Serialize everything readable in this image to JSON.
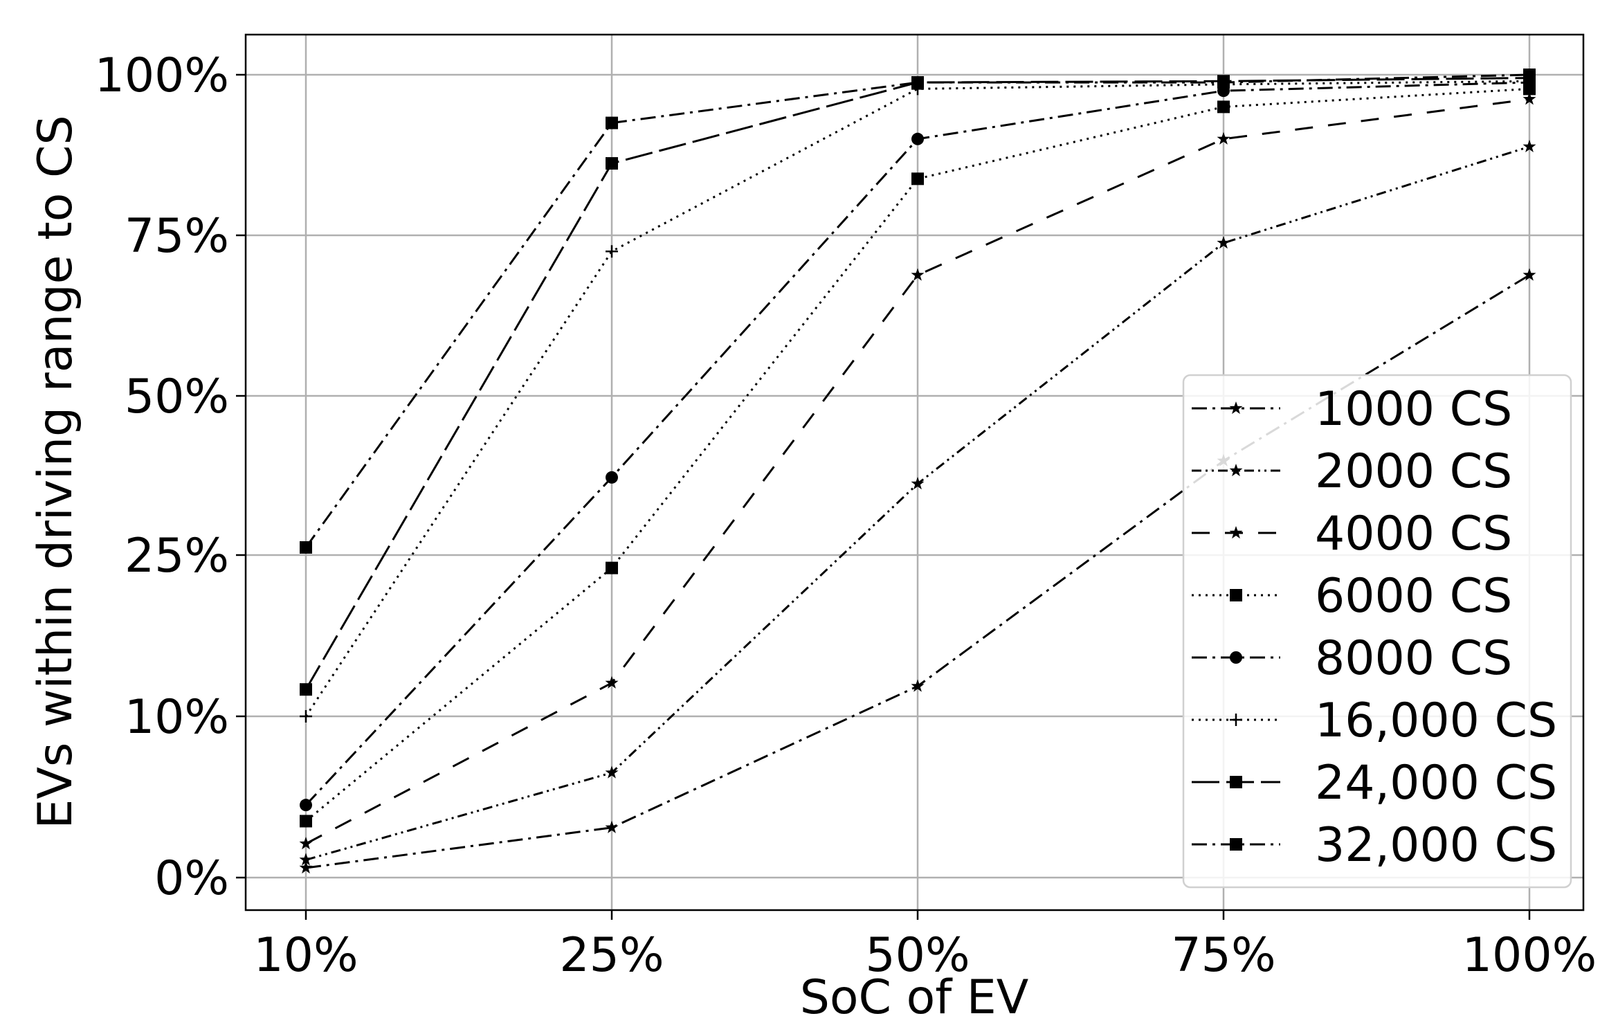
{
  "chart_data": {
    "type": "line",
    "title": "",
    "xlabel": "SoC of EV",
    "ylabel": "EVs within driving range to CS",
    "categories": [
      "10%",
      "25%",
      "50%",
      "75%",
      "100%"
    ],
    "y_ticks": [
      "0%",
      "10%",
      "25%",
      "50%",
      "75%",
      "100%"
    ],
    "grid": true,
    "legend_position": "lower-right",
    "color": "#000000",
    "series": [
      {
        "name": "1000 CS",
        "marker": "star",
        "dash": "dashdot",
        "values": [
          0.6,
          3.1,
          12.8,
          39.8,
          68.8
        ]
      },
      {
        "name": "2000 CS",
        "marker": "star",
        "dash": "dashdot2",
        "values": [
          1.1,
          6.5,
          36.2,
          73.8,
          88.8
        ]
      },
      {
        "name": "4000 CS",
        "marker": "star",
        "dash": "dashed",
        "values": [
          2.1,
          13.1,
          68.8,
          90.0,
          96.2
        ]
      },
      {
        "name": "6000 CS",
        "marker": "square",
        "dash": "dotted",
        "values": [
          3.5,
          23.8,
          83.8,
          95.0,
          97.8
        ]
      },
      {
        "name": "8000 CS",
        "marker": "circle",
        "dash": "dashdot",
        "values": [
          4.5,
          37.2,
          90.0,
          97.5,
          98.8
        ]
      },
      {
        "name": "16,000 CS",
        "marker": "plus",
        "dash": "dotted",
        "values": [
          10.0,
          72.5,
          97.8,
          98.5,
          99.0
        ]
      },
      {
        "name": "24,000 CS",
        "marker": "square",
        "dash": "longdash",
        "values": [
          12.5,
          86.2,
          98.8,
          99.0,
          99.5
        ]
      },
      {
        "name": "32,000 CS",
        "marker": "square",
        "dash": "dashdot",
        "values": [
          26.2,
          92.5,
          98.8,
          98.8,
          100.0
        ]
      }
    ]
  }
}
